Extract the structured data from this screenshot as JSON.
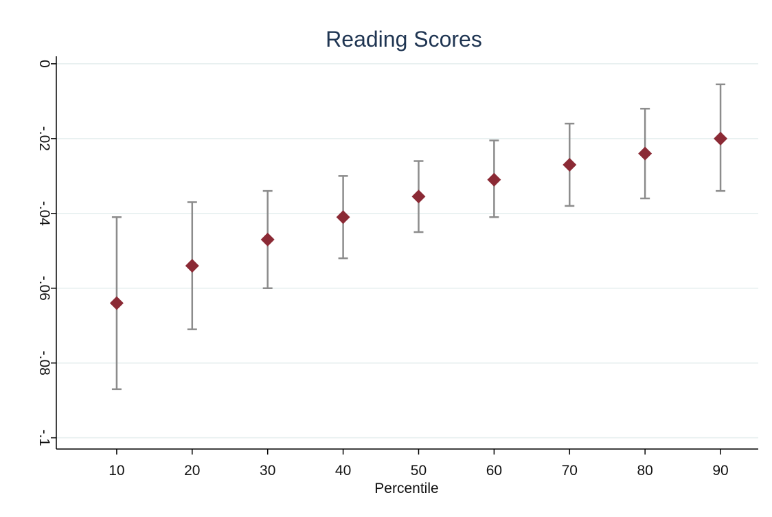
{
  "chart_data": {
    "type": "scatter",
    "title": "Reading Scores",
    "xlabel": "Percentile",
    "ylabel": "",
    "x": [
      10,
      20,
      30,
      40,
      50,
      60,
      70,
      80,
      90
    ],
    "series": [
      {
        "estimate": [
          -0.064,
          -0.054,
          -0.047,
          -0.041,
          -0.0355,
          -0.031,
          -0.027,
          -0.024,
          -0.02
        ],
        "ci_low": [
          -0.087,
          -0.071,
          -0.06,
          -0.052,
          -0.045,
          -0.041,
          -0.038,
          -0.036,
          -0.034
        ],
        "ci_high": [
          -0.041,
          -0.037,
          -0.034,
          -0.03,
          -0.026,
          -0.0205,
          -0.016,
          -0.012,
          -0.0055
        ]
      }
    ],
    "xticks": [
      "10",
      "20",
      "30",
      "40",
      "50",
      "60",
      "70",
      "80",
      "90"
    ],
    "yticks": [
      "0",
      "-.02",
      "-.04",
      "-.06",
      "-.08",
      "-.1"
    ],
    "ytick_values": [
      0,
      -0.02,
      -0.04,
      -0.06,
      -0.08,
      -0.1
    ],
    "xlim": [
      2,
      95
    ],
    "ylim": [
      -0.103,
      0.002
    ],
    "grid": true,
    "colors": {
      "marker": "#8b2a35",
      "errorbar": "#8c8c8c",
      "grid": "#e4eeee",
      "axis": "#000000",
      "title": "#1f3552"
    }
  }
}
